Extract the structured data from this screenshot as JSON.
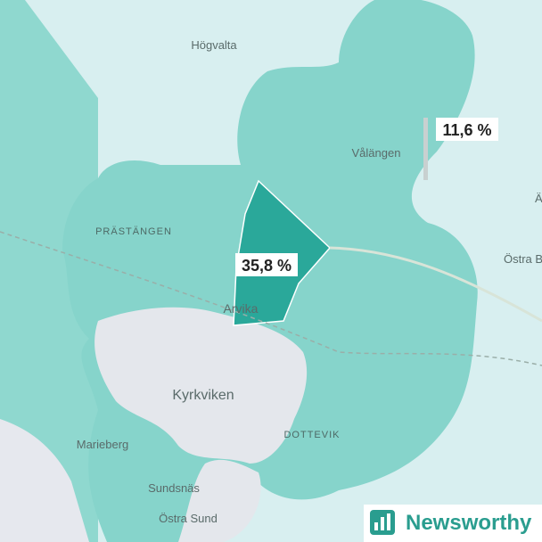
{
  "places": [
    "Högvalta",
    "Vålängen",
    "PRÄSTÄNGEN",
    "Arvika",
    "Kyrkviken",
    "DOTTEVIK",
    "Marieberg",
    "Sundsnäs",
    "Östra Sund",
    "Östra B",
    "Ä"
  ],
  "areas": [
    {
      "label": "35,8 %"
    },
    {
      "label": "11,6 %"
    }
  ],
  "logo": "Newsworthy"
}
